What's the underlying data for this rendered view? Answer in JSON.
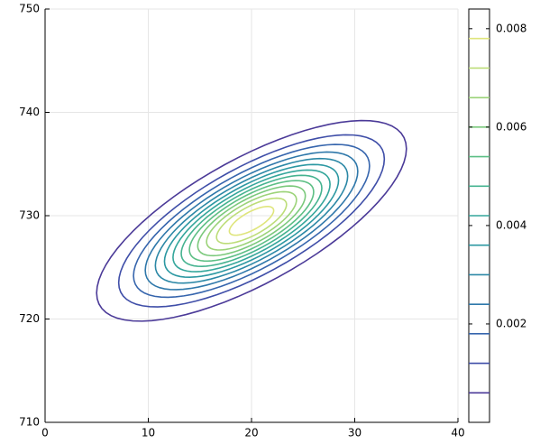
{
  "chart_data": {
    "type": "contour",
    "mean": [
      20,
      729.5
    ],
    "cov": [
      [
        43,
        20
      ],
      [
        20,
        18
      ]
    ],
    "levels": [
      0.0006,
      0.0012,
      0.0018,
      0.0024,
      0.003,
      0.0036,
      0.0042,
      0.0048,
      0.0054,
      0.006,
      0.0066,
      0.0072,
      0.0078
    ],
    "colors": [
      "#4b3a98",
      "#3f4ea8",
      "#3665ad",
      "#2f78aa",
      "#2c88a6",
      "#2c98a2",
      "#34a69b",
      "#45b390",
      "#5dbf85",
      "#7bc97c",
      "#9cd379",
      "#bddd79",
      "#dfe57c"
    ],
    "xlim": [
      0,
      40
    ],
    "xticks": [
      0,
      10,
      20,
      30,
      40
    ],
    "ylim": [
      710,
      750
    ],
    "yticks": [
      710,
      720,
      730,
      740,
      750
    ],
    "clim": [
      0,
      0.0084
    ],
    "cticks": [
      0.002,
      0.004,
      0.006,
      0.008
    ],
    "grid": true
  }
}
